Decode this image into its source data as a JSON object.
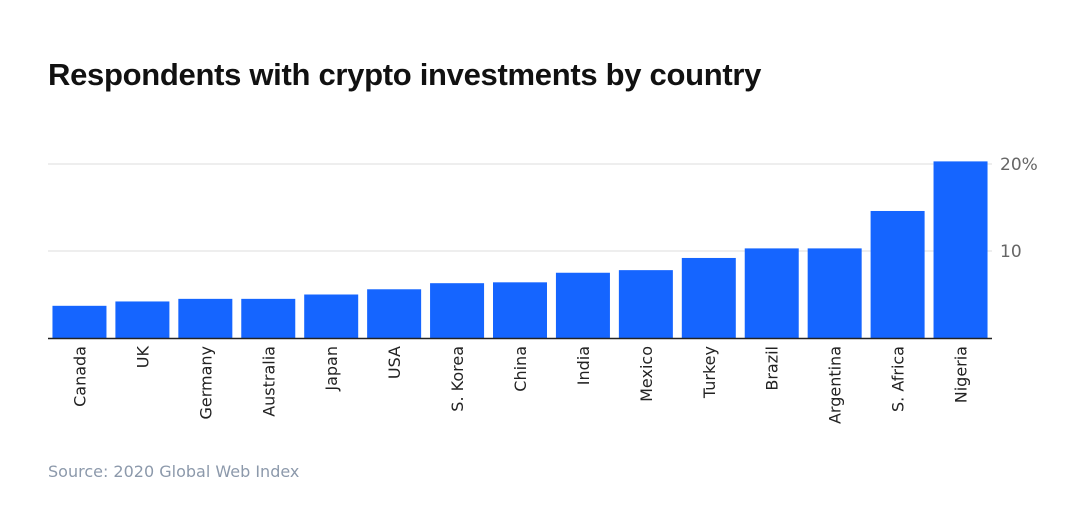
{
  "chart_data": {
    "type": "bar",
    "title": "Respondents with crypto investments by country",
    "categories": [
      "Canada",
      "UK",
      "Germany",
      "Australia",
      "Japan",
      "USA",
      "S. Korea",
      "China",
      "India",
      "Mexico",
      "Turkey",
      "Brazil",
      "Argentina",
      "S. Africa",
      "Nigeria"
    ],
    "values": [
      3.7,
      4.2,
      4.5,
      4.5,
      5.0,
      5.6,
      6.3,
      6.4,
      7.5,
      7.8,
      9.2,
      10.3,
      10.3,
      14.6,
      20.3
    ],
    "ylim": [
      0,
      20
    ],
    "yticks": [
      {
        "value": 10,
        "label": "10"
      },
      {
        "value": 20,
        "label": "20%"
      }
    ],
    "xlabel": "",
    "ylabel": "",
    "bar_color": "#1565ff",
    "grid": true
  },
  "source": "Source: 2020 Global Web Index"
}
